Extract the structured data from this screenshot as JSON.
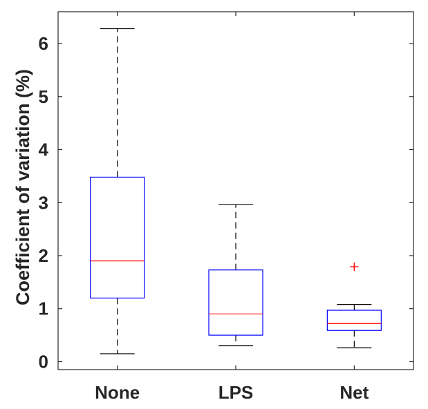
{
  "chart_data": {
    "type": "boxplot",
    "title": "",
    "xlabel": "",
    "ylabel": "Coefficient of variation (%)",
    "ylim": [
      -0.15,
      6.6
    ],
    "yticks": [
      "0",
      "1",
      "2",
      "3",
      "4",
      "5",
      "6"
    ],
    "categories": [
      "None",
      "LPS",
      "Net"
    ],
    "series": [
      {
        "name": "None",
        "whisker_low": 0.15,
        "q1": 1.2,
        "median": 1.9,
        "q3": 3.48,
        "whisker_high": 6.28,
        "outliers": []
      },
      {
        "name": "LPS",
        "whisker_low": 0.3,
        "q1": 0.5,
        "median": 0.9,
        "q3": 1.73,
        "whisker_high": 2.96,
        "outliers": []
      },
      {
        "name": "Net",
        "whisker_low": 0.26,
        "q1": 0.59,
        "median": 0.72,
        "q3": 0.97,
        "whisker_high": 1.08,
        "outliers": [
          1.79
        ]
      }
    ],
    "colors": {
      "box": "#0000ff",
      "median": "#ff0000",
      "whisker": "#000000",
      "outlier": "#ff0000",
      "axis": "#262626"
    }
  }
}
